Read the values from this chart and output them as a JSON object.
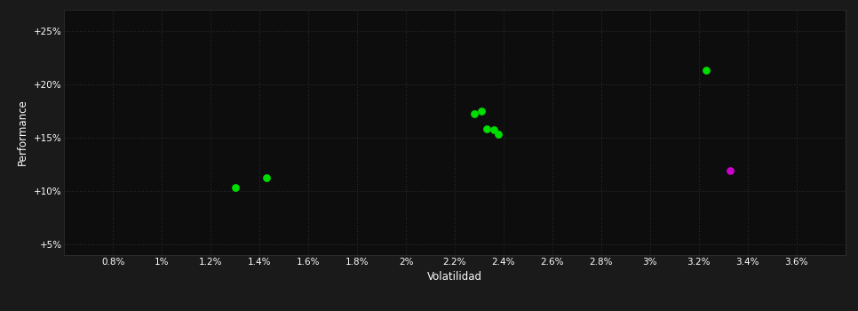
{
  "background_color": "#1a1a1a",
  "plot_bg_color": "#0d0d0d",
  "grid_color": "#2a2a2a",
  "text_color": "#ffffff",
  "xlabel": "Volatilidad",
  "ylabel": "Performance",
  "xlim": [
    0.006,
    0.038
  ],
  "ylim": [
    0.04,
    0.27
  ],
  "xticks": [
    0.008,
    0.01,
    0.012,
    0.014,
    0.016,
    0.018,
    0.02,
    0.022,
    0.024,
    0.026,
    0.028,
    0.03,
    0.032,
    0.034,
    0.036
  ],
  "xtick_labels": [
    "0.8%",
    "1%",
    "1.2%",
    "1.4%",
    "1.6%",
    "1.8%",
    "2%",
    "2.2%",
    "2.4%",
    "2.6%",
    "2.8%",
    "3%",
    "3.2%",
    "3.4%",
    "3.6%"
  ],
  "yticks": [
    0.05,
    0.1,
    0.15,
    0.2,
    0.25
  ],
  "ytick_labels": [
    "+5%",
    "+10%",
    "+15%",
    "+20%",
    "+25%"
  ],
  "green_points": [
    [
      0.013,
      0.103
    ],
    [
      0.0143,
      0.112
    ],
    [
      0.0228,
      0.172
    ],
    [
      0.0231,
      0.175
    ],
    [
      0.0233,
      0.158
    ],
    [
      0.0236,
      0.157
    ],
    [
      0.0238,
      0.153
    ],
    [
      0.0323,
      0.213
    ]
  ],
  "magenta_points": [
    [
      0.0333,
      0.119
    ]
  ],
  "point_size": 28,
  "green_color": "#00dd00",
  "magenta_color": "#cc00cc"
}
